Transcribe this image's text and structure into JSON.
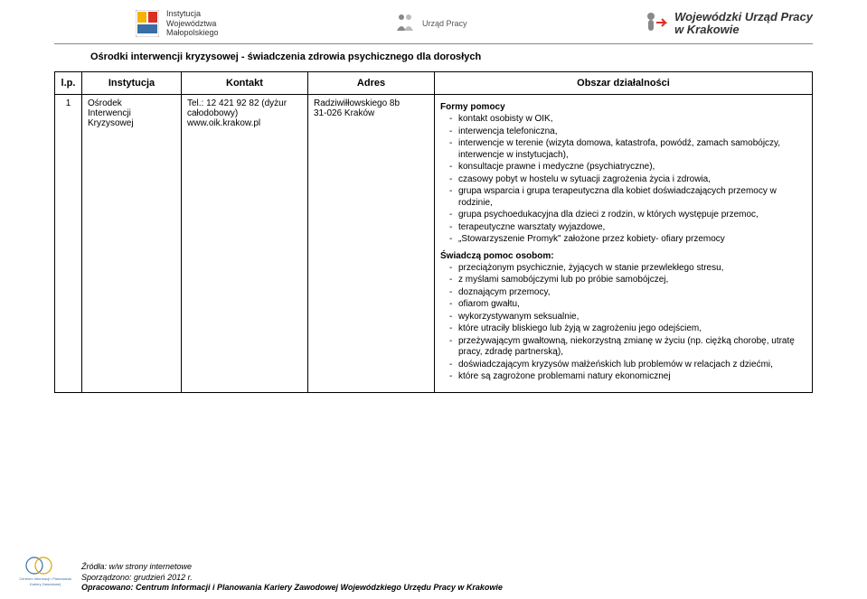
{
  "header": {
    "left": {
      "line1": "Instytucja",
      "line2": "Województwa",
      "line3": "Małopolskiego"
    },
    "center": {
      "text": "Urząd Pracy"
    },
    "right": {
      "line1": "Wojewódzki Urząd Pracy",
      "line2": "w Krakowie"
    }
  },
  "title": "Ośrodki interwencji kryzysowej - świadczenia zdrowia  psychicznego dla dorosłych",
  "table": {
    "headers": {
      "h1": "l.p.",
      "h2": "Instytucja",
      "h3": "Kontakt",
      "h4": "Adres",
      "h5": "Obszar działalności"
    },
    "row": {
      "num": "1",
      "instytucja": "Ośrodek\nInterwencji\nKryzysowej",
      "kontakt": "Tel.: 12 421 92 82 (dyżur\ncałodobowy)\nwww.oik.krakow.pl",
      "adres": "Radziwiłłowskiego 8b\n31-026 Kraków",
      "obszar": {
        "heading1": "Formy pomocy",
        "list1": [
          "kontakt osobisty w OIK,",
          "interwencja telefoniczna,",
          "interwencje w terenie (wizyta domowa, katastrofa, powódź, zamach samobójczy, interwencje w instytucjach),",
          "konsultacje prawne i medyczne (psychiatryczne),",
          "czasowy pobyt w hostelu w sytuacji zagrożenia życia i zdrowia,",
          "grupa wsparcia i grupa terapeutyczna dla kobiet doświadczających przemocy w rodzinie,",
          "grupa psychoedukacyjna dla dzieci z rodzin, w których występuje przemoc,",
          "terapeutyczne warsztaty wyjazdowe,",
          "„Stowarzyszenie Promyk\" założone przez kobiety- ofiary przemocy"
        ],
        "heading2": "Świadczą pomoc osobom:",
        "list2": [
          "przeciążonym psychicznie, żyjących w stanie przewlekłego stresu,",
          "z myślami samobójczymi lub po próbie samobójczej,",
          "doznającym przemocy,",
          "ofiarom gwałtu,",
          "wykorzystywanym seksualnie,",
          "które utraciły bliskiego lub żyją w zagrożeniu jego odejściem,",
          "przeżywającym gwałtowną, niekorzystną zmianę w życiu (np. ciężką chorobę, utratę pracy, zdradę partnerską),",
          "doświadczającym kryzysów małżeńskich lub problemów w relacjach z dziećmi,",
          "które są zagrożone problemami natury ekonomicznej"
        ]
      }
    }
  },
  "footer": {
    "logo_text": "Centrum Informacji i Planowania\nKariery Zawodowej",
    "line1": "Źródła: w/w strony internetowe",
    "line2": "Sporządzono: grudzień 2012 r.",
    "line3": "Opracowano: Centrum Informacji i Planowania Kariery Zawodowej Wojewódzkiego Urzędu Pracy w Krakowie"
  },
  "colors": {
    "text": "#000000",
    "border": "#000000",
    "background": "#ffffff",
    "rule": "#888888",
    "logo_yellow": "#f4b400",
    "logo_red": "#d93025",
    "logo_blue": "#3a6ea5",
    "logo_gray": "#555555"
  }
}
